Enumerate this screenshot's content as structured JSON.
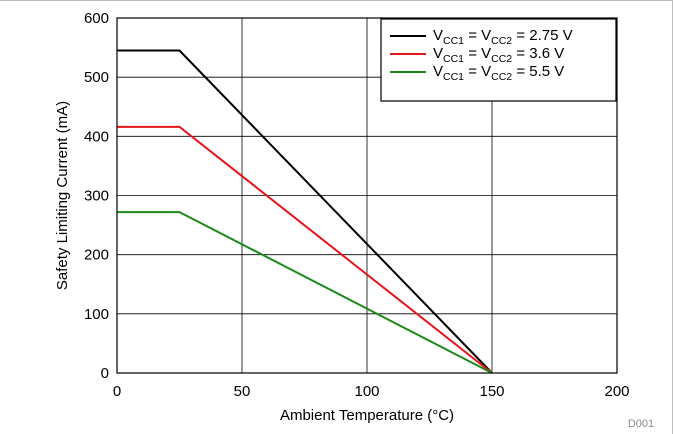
{
  "chart_data": {
    "type": "line",
    "xlabel": "Ambient Temperature (°C)",
    "ylabel": "Safety Limiting Current (mA)",
    "xlim": [
      0,
      200
    ],
    "ylim": [
      0,
      600
    ],
    "xticks": [
      0,
      50,
      100,
      150,
      200
    ],
    "yticks": [
      0,
      100,
      200,
      300,
      400,
      500,
      600
    ],
    "grid": true,
    "legend_position": "top-right",
    "series": [
      {
        "name": "VCC1 = VCC2 = 2.75 V",
        "legend": {
          "v": "V",
          "s1": "CC1",
          "eq1": " = V",
          "s2": "CC2",
          "val": " = 2.75 V"
        },
        "color": "#000000",
        "x": [
          0,
          25,
          150
        ],
        "y": [
          545,
          545,
          0
        ]
      },
      {
        "name": "VCC1 = VCC2 = 3.6 V",
        "legend": {
          "v": "V",
          "s1": "CC1",
          "eq1": " = V",
          "s2": "CC2",
          "val": " = 3.6 V"
        },
        "color": "#e8151b",
        "x": [
          0,
          25,
          150
        ],
        "y": [
          416,
          416,
          0
        ]
      },
      {
        "name": "VCC1 = VCC2 = 5.5 V",
        "legend": {
          "v": "V",
          "s1": "CC1",
          "eq1": " = V",
          "s2": "CC2",
          "val": " = 5.5 V"
        },
        "color": "#1b8a1b",
        "x": [
          0,
          25,
          150
        ],
        "y": [
          272,
          272,
          0
        ]
      }
    ],
    "annotation": "D001"
  }
}
